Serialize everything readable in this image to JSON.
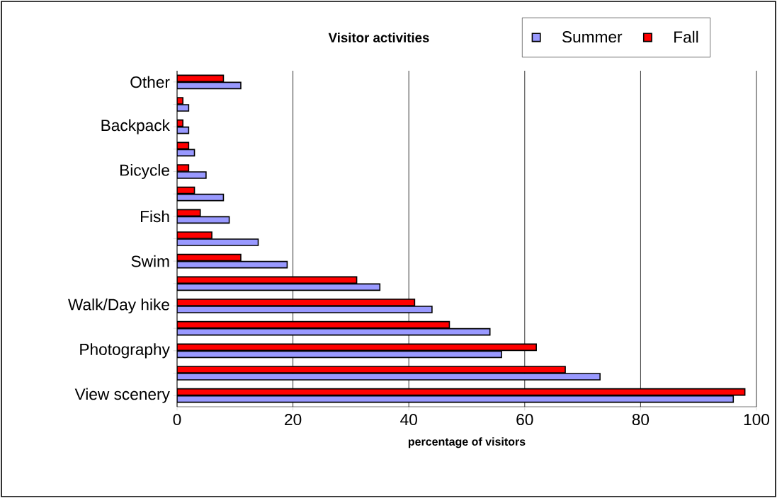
{
  "chart_data": {
    "type": "bar",
    "orientation": "horizontal",
    "title": "Visitor activities",
    "xlabel": "percentage of visitors",
    "categories": [
      "Other",
      null,
      "Backpack",
      null,
      "Bicycle",
      null,
      "Fish",
      null,
      "Swim",
      null,
      "Walk/Day hike",
      null,
      "Photography",
      null,
      "View scenery"
    ],
    "series": [
      {
        "name": "Summer",
        "color": "#9999ff",
        "values": [
          11,
          2,
          2,
          3,
          5,
          8,
          9,
          14,
          19,
          35,
          44,
          54,
          56,
          73,
          96
        ]
      },
      {
        "name": "Fall",
        "color": "#ff0000",
        "values": [
          8,
          1,
          1,
          2,
          2,
          3,
          4,
          6,
          11,
          31,
          41,
          47,
          62,
          67,
          98
        ]
      }
    ],
    "xlim": [
      0,
      100
    ],
    "xticks": [
      0,
      20,
      40,
      60,
      80,
      100
    ],
    "grid": "x",
    "legend": "top right"
  }
}
